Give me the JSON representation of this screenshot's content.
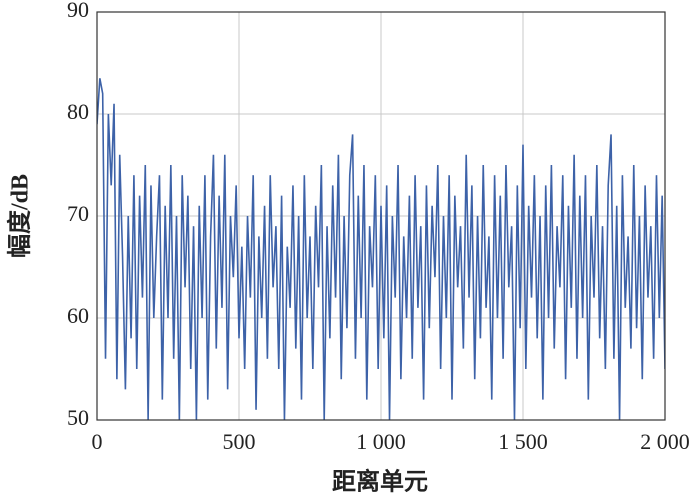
{
  "chart_data": {
    "type": "line",
    "xlabel": "距离单元",
    "ylabel": "幅度/dB",
    "x": [
      0,
      10,
      20,
      30,
      40,
      50,
      60,
      70,
      80,
      90,
      100,
      110,
      120,
      130,
      140,
      150,
      160,
      170,
      180,
      190,
      200,
      210,
      220,
      230,
      240,
      250,
      260,
      270,
      280,
      290,
      300,
      310,
      320,
      330,
      340,
      350,
      360,
      370,
      380,
      390,
      400,
      410,
      420,
      430,
      440,
      450,
      460,
      470,
      480,
      490,
      500,
      510,
      520,
      530,
      540,
      550,
      560,
      570,
      580,
      590,
      600,
      610,
      620,
      630,
      640,
      650,
      660,
      670,
      680,
      690,
      700,
      710,
      720,
      730,
      740,
      750,
      760,
      770,
      780,
      790,
      800,
      810,
      820,
      830,
      840,
      850,
      860,
      870,
      880,
      890,
      900,
      910,
      920,
      930,
      940,
      950,
      960,
      970,
      980,
      990,
      1000,
      1010,
      1020,
      1030,
      1040,
      1050,
      1060,
      1070,
      1080,
      1090,
      1100,
      1110,
      1120,
      1130,
      1140,
      1150,
      1160,
      1170,
      1180,
      1190,
      1200,
      1210,
      1220,
      1230,
      1240,
      1250,
      1260,
      1270,
      1280,
      1290,
      1300,
      1310,
      1320,
      1330,
      1340,
      1350,
      1360,
      1370,
      1380,
      1390,
      1400,
      1410,
      1420,
      1430,
      1440,
      1450,
      1460,
      1470,
      1480,
      1490,
      1500,
      1510,
      1520,
      1530,
      1540,
      1550,
      1560,
      1570,
      1580,
      1590,
      1600,
      1610,
      1620,
      1630,
      1640,
      1650,
      1660,
      1670,
      1680,
      1690,
      1700,
      1710,
      1720,
      1730,
      1740,
      1750,
      1760,
      1770,
      1780,
      1790,
      1800,
      1810,
      1820,
      1830,
      1840,
      1850,
      1860,
      1870,
      1880,
      1890,
      1900,
      1910,
      1920,
      1930,
      1940,
      1950,
      1960,
      1970,
      1980,
      1990,
      2000
    ],
    "series": [
      {
        "name": "幅度",
        "color": "#3d62a8",
        "values": [
          79,
          83.5,
          82,
          56,
          80,
          73,
          81,
          54,
          76,
          66,
          53,
          70,
          58,
          74,
          55,
          72,
          62,
          75,
          50,
          73,
          60,
          68,
          74,
          52,
          71,
          60,
          75,
          56,
          70,
          50,
          74,
          63,
          72,
          55,
          69,
          50,
          71,
          60,
          74,
          52,
          68,
          76,
          57,
          72,
          61,
          76,
          53,
          70,
          64,
          73,
          58,
          67,
          55,
          70,
          62,
          74,
          51,
          68,
          60,
          71,
          56,
          74,
          63,
          69,
          55,
          72,
          50,
          67,
          61,
          73,
          57,
          70,
          52,
          74,
          60,
          68,
          55,
          71,
          63,
          75,
          50,
          69,
          58,
          73,
          62,
          76,
          54,
          70,
          59,
          74,
          78,
          56,
          72,
          60,
          75,
          52,
          69,
          63,
          74,
          55,
          71,
          58,
          73,
          50,
          70,
          62,
          75,
          54,
          68,
          60,
          72,
          56,
          74,
          61,
          69,
          52,
          73,
          59,
          71,
          64,
          75,
          55,
          70,
          60,
          74,
          52,
          72,
          63,
          69,
          57,
          76,
          62,
          73,
          54,
          70,
          58,
          75,
          61,
          68,
          52,
          74,
          60,
          72,
          56,
          75,
          63,
          69,
          50,
          73,
          59,
          77,
          55,
          71,
          62,
          74,
          58,
          70,
          52,
          73,
          60,
          75,
          57,
          69,
          63,
          74,
          54,
          71,
          61,
          76,
          56,
          72,
          60,
          74,
          52,
          70,
          62,
          75,
          58,
          69,
          55,
          73,
          78,
          56,
          71,
          50,
          74,
          61,
          68,
          57,
          75,
          59,
          70,
          54,
          73,
          62,
          69,
          56,
          74,
          60,
          72,
          55
        ]
      }
    ],
    "xlim": [
      0,
      2000
    ],
    "xticks": [
      0,
      500,
      {
        "value": 1000,
        "label": "1 000"
      },
      {
        "value": 1500,
        "label": "1 500"
      },
      {
        "value": 2000,
        "label": "2 000"
      }
    ],
    "ylim": [
      50,
      90
    ],
    "yticks": [
      50,
      60,
      70,
      80,
      90
    ],
    "grid": true
  }
}
